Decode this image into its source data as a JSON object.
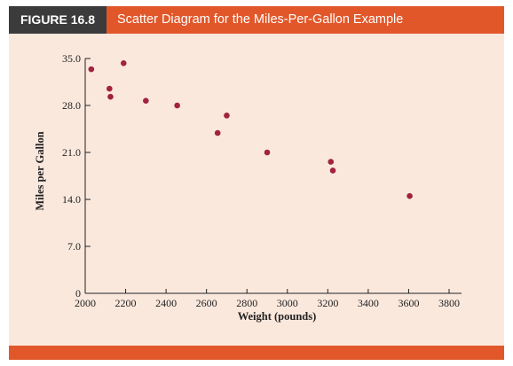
{
  "figure": {
    "label": "FIGURE 16.8",
    "title": "Scatter Diagram for the Miles-Per-Gallon Example"
  },
  "colors": {
    "header": "#e2572a",
    "label_bg": "#3b3b3b",
    "panel": "#fbe8dd",
    "point": "#a1233f"
  },
  "chart_data": {
    "type": "scatter",
    "title": "Scatter Diagram for the Miles-Per-Gallon Example",
    "xlabel": "Weight (pounds)",
    "ylabel": "Miles per Gallon",
    "xlim": [
      2000,
      3800
    ],
    "ylim": [
      0,
      35
    ],
    "xticks": [
      2000,
      2200,
      2400,
      2600,
      2800,
      3000,
      3200,
      3400,
      3600,
      3800
    ],
    "xtick_labels": [
      "2000",
      "2200",
      "2400",
      "2600",
      "2800",
      "3000",
      "3200",
      "3400",
      "3600",
      "3800"
    ],
    "yticks": [
      0,
      7,
      14,
      21,
      28,
      35
    ],
    "ytick_labels": [
      "0",
      "7.0",
      "14.0",
      "21.0",
      "28.0",
      "35.0"
    ],
    "grid": false,
    "points": [
      {
        "x": 2030,
        "y": 33.4
      },
      {
        "x": 2190,
        "y": 34.3
      },
      {
        "x": 2120,
        "y": 30.5
      },
      {
        "x": 2125,
        "y": 29.3
      },
      {
        "x": 2300,
        "y": 28.7
      },
      {
        "x": 2455,
        "y": 28.0
      },
      {
        "x": 2700,
        "y": 26.5
      },
      {
        "x": 2655,
        "y": 23.9
      },
      {
        "x": 2900,
        "y": 21.0
      },
      {
        "x": 3215,
        "y": 19.6
      },
      {
        "x": 3225,
        "y": 18.3
      },
      {
        "x": 3605,
        "y": 14.5
      }
    ]
  }
}
